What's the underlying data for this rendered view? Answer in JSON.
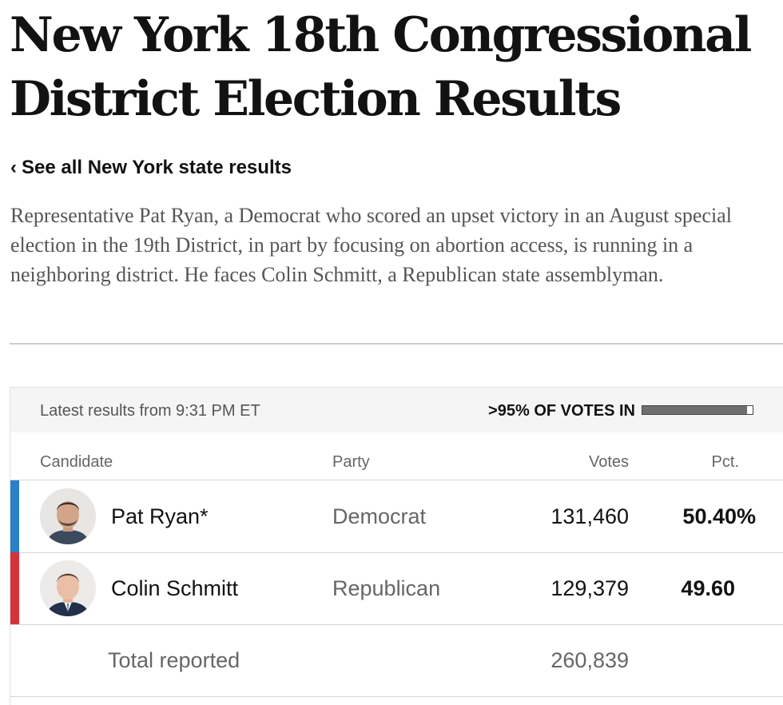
{
  "header": {
    "title": "New York 18th Congressional District Election Results",
    "back_link_icon": "‹",
    "back_link_label": "See all New York state results"
  },
  "intro": {
    "text": "Representative Pat Ryan, a Democrat who scored an upset victory in an August special election in the 19th District, in part by focusing on abortion access, is running in a neighboring district. He faces Colin Schmitt, a Republican state assemblyman."
  },
  "results": {
    "latest": "Latest results from 9:31 PM ET",
    "votes_in_label": ">95% OF VOTES IN",
    "votes_in_fraction": 0.95,
    "columns": {
      "candidate": "Candidate",
      "party": "Party",
      "votes": "Votes",
      "pct": "Pct."
    },
    "candidates": [
      {
        "name": "Pat Ryan*",
        "party": "Democrat",
        "votes": "131,460",
        "pct": "50.40%",
        "party_color": "#2a7fc9",
        "avatar_icon": "candidate-photo"
      },
      {
        "name": "Colin Schmitt",
        "party": "Republican",
        "votes": "129,379",
        "pct": "49.60",
        "party_color": "#d6323c",
        "avatar_icon": "candidate-photo"
      }
    ],
    "total": {
      "label": "Total reported",
      "votes": "260,839"
    }
  }
}
